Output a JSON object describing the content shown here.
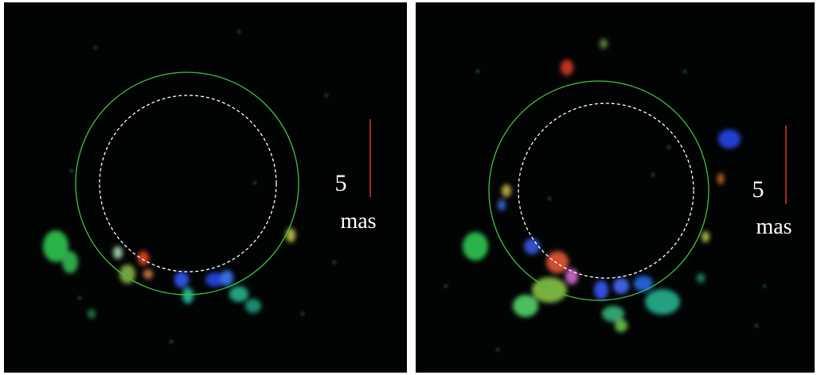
{
  "panels": [
    {
      "scale_value": "5",
      "scale_unit": "mas"
    },
    {
      "scale_value": "5",
      "scale_unit": "mas"
    }
  ]
}
